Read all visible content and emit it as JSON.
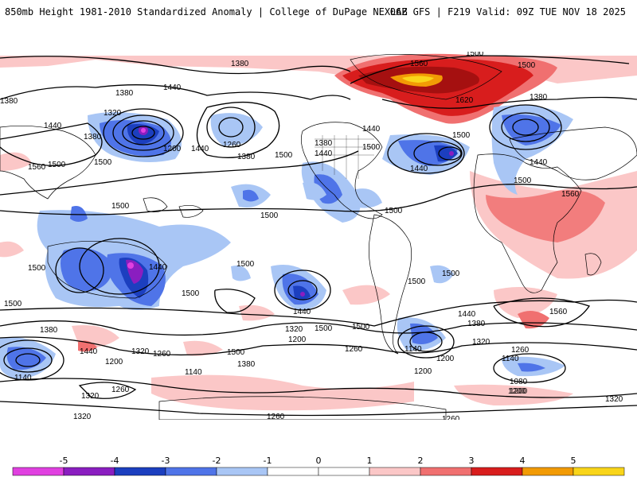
{
  "header": {
    "title_left": "850mb Height 1981-2010 Standardized Anomaly | College of DuPage NEXLAB",
    "title_right": "06Z GFS | F219 Valid: 09Z TUE NOV 18 2025"
  },
  "colorbar": {
    "ticks": [
      "-5",
      "-4",
      "-3",
      "-2",
      "-1",
      "0",
      "1",
      "2",
      "3",
      "4",
      "5"
    ],
    "colors": [
      "#e040e0",
      "#8a1ec0",
      "#1c3fbf",
      "#4f74e8",
      "#a9c6f5",
      "#ffffff",
      "#ffffff",
      "#fbc7c7",
      "#f07070",
      "#d81d1d",
      "#f29b05",
      "#f9d51a"
    ]
  },
  "contour_labels": [
    {
      "id": "l1380a",
      "text": "1380"
    },
    {
      "id": "l1440a",
      "text": "1440"
    },
    {
      "id": "l1380b",
      "text": "1380"
    },
    {
      "id": "l1380c",
      "text": "1380"
    },
    {
      "id": "l1320a",
      "text": "1320"
    },
    {
      "id": "l1440b",
      "text": "1440"
    },
    {
      "id": "l1380d",
      "text": "1380"
    },
    {
      "id": "l1200a",
      "text": "1200"
    },
    {
      "id": "l1440c",
      "text": "1440"
    },
    {
      "id": "l1260a",
      "text": "1260"
    },
    {
      "id": "l1380e",
      "text": "1380"
    },
    {
      "id": "l1500a",
      "text": "1500"
    },
    {
      "id": "l1500b",
      "text": "1500"
    },
    {
      "id": "l1560a",
      "text": "1560"
    },
    {
      "id": "l1500c",
      "text": "1500"
    },
    {
      "id": "l1440d",
      "text": "1440"
    },
    {
      "id": "l1500d",
      "text": "1500"
    },
    {
      "id": "l1560b",
      "text": "1560"
    },
    {
      "id": "l1500e",
      "text": "1500"
    },
    {
      "id": "l1620a",
      "text": "1620"
    },
    {
      "id": "l1440e",
      "text": "1440"
    },
    {
      "id": "l1500f",
      "text": "1500"
    },
    {
      "id": "l1440f",
      "text": "1440"
    },
    {
      "id": "l1380f",
      "text": "1380"
    },
    {
      "id": "l1380g",
      "text": "1380"
    },
    {
      "id": "l1500g",
      "text": "1500"
    },
    {
      "id": "l1440g",
      "text": "1440"
    },
    {
      "id": "l1500h",
      "text": "1500"
    },
    {
      "id": "l1560c",
      "text": "1560"
    },
    {
      "id": "l1500i",
      "text": "1500"
    },
    {
      "id": "l1500j",
      "text": "1500"
    },
    {
      "id": "l1500k",
      "text": "1500"
    },
    {
      "id": "l1500l",
      "text": "1500"
    },
    {
      "id": "l1440h",
      "text": "1440"
    },
    {
      "id": "l1500m",
      "text": "1500"
    },
    {
      "id": "l1500n",
      "text": "1500"
    },
    {
      "id": "l1440i",
      "text": "1440"
    },
    {
      "id": "l1500o",
      "text": "1500"
    },
    {
      "id": "l1500p",
      "text": "1500"
    },
    {
      "id": "l1500q",
      "text": "1500"
    },
    {
      "id": "l1500r",
      "text": "1500"
    },
    {
      "id": "l1440j",
      "text": "1440"
    },
    {
      "id": "l1380h",
      "text": "1380"
    },
    {
      "id": "l1560d",
      "text": "1560"
    },
    {
      "id": "l1380i",
      "text": "1380"
    },
    {
      "id": "l1320b",
      "text": "1320"
    },
    {
      "id": "l1200b",
      "text": "1200"
    },
    {
      "id": "l1500s",
      "text": "1500"
    },
    {
      "id": "l1440k",
      "text": "1440"
    },
    {
      "id": "l1320c",
      "text": "1320"
    },
    {
      "id": "l1260b",
      "text": "1260"
    },
    {
      "id": "l1200c",
      "text": "1200"
    },
    {
      "id": "l1500t",
      "text": "1500"
    },
    {
      "id": "l1380j",
      "text": "1380"
    },
    {
      "id": "l1260c",
      "text": "1260"
    },
    {
      "id": "l1140a",
      "text": "1140"
    },
    {
      "id": "l1200d",
      "text": "1200"
    },
    {
      "id": "l1320d",
      "text": "1320"
    },
    {
      "id": "l1260d",
      "text": "1260"
    },
    {
      "id": "l1140b",
      "text": "1140"
    },
    {
      "id": "l1080a",
      "text": "1080"
    },
    {
      "id": "l1200e",
      "text": "1200"
    },
    {
      "id": "l1320e",
      "text": "1320"
    },
    {
      "id": "l1140c",
      "text": "1140"
    },
    {
      "id": "l1320f",
      "text": "1320"
    },
    {
      "id": "l1260e",
      "text": "1260"
    },
    {
      "id": "l1260f",
      "text": "1260"
    },
    {
      "id": "l1200f",
      "text": "1200"
    },
    {
      "id": "l1140d",
      "text": "1140"
    },
    {
      "id": "l1260g",
      "text": "1260"
    },
    {
      "id": "l1200g",
      "text": "1200"
    },
    {
      "id": "l1320g",
      "text": "1320"
    }
  ]
}
